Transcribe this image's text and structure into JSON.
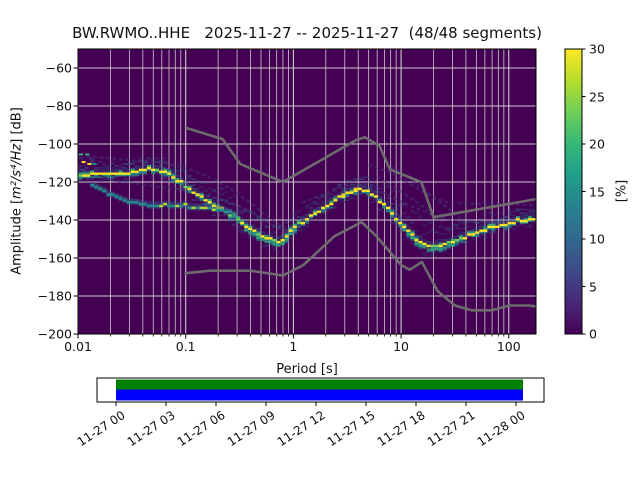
{
  "title": "BW.RWMO..HHE   2025-11-27 -- 2025-11-27  (48/48 segments)",
  "axes": {
    "ylabel": {
      "prefix": "Amplitude [",
      "math": "m²/s⁴/Hz",
      "suffix": "] [dB]"
    },
    "xlabel": "Period [s]",
    "x_tick_values": [
      0.01,
      0.1,
      1,
      10,
      100
    ],
    "x_tick_labels": [
      "0.01",
      "0.1",
      "1",
      "10",
      "100"
    ],
    "y_tick_values": [
      -60,
      -80,
      -100,
      -120,
      -140,
      -160,
      -180,
      -200
    ],
    "y_tick_labels": [
      "−60",
      "−80",
      "−100",
      "−120",
      "−140",
      "−160",
      "−180",
      "−200"
    ]
  },
  "colorbar": {
    "label": "[%]",
    "tick_values": [
      0,
      5,
      10,
      15,
      20,
      25,
      30
    ],
    "tick_labels": [
      "0",
      "5",
      "10",
      "15",
      "20",
      "25",
      "30"
    ],
    "min": 0,
    "max": 30
  },
  "timeline": {
    "tick_labels": [
      "11-27 00",
      "11-27 03",
      "11-27 06",
      "11-27 09",
      "11-27 12",
      "11-27 15",
      "11-27 18",
      "11-27 21",
      "11-28 00"
    ],
    "bar_top_color": "#008000",
    "bar_bottom_color": "#0000ff"
  },
  "colors": {
    "histogram_bg": "#440154",
    "grid": "#cccccc",
    "noise_model_gray": "#707070",
    "mode_yellow": "#f8e621",
    "teal": "#21918c",
    "green": "#35b779",
    "light_green": "#6ece58",
    "yellow_green": "#b5de2b",
    "blue": "#31688e",
    "indigo": "#3b528b",
    "violet": "#472d7b",
    "frame": "#000000",
    "viridis_stops": [
      "#440154",
      "#482878",
      "#3e4a89",
      "#31688e",
      "#26828e",
      "#1f9e89",
      "#35b779",
      "#6ece58",
      "#b5de2b",
      "#fde725"
    ]
  },
  "chart_data": {
    "type": "heatmap",
    "title": "BW.RWMO..HHE   2025-11-27 -- 2025-11-27  (48/48 segments)",
    "station": "BW.RWMO..HHE",
    "date_range": "2025-11-27 -- 2025-11-27",
    "segments_used": "48/48",
    "xlabel": "Period [s]",
    "ylabel": "Amplitude [m²/s⁴/Hz] [dB]",
    "colorbar_label": "[%]",
    "x_scale": "log",
    "xlim": [
      0.01,
      179
    ],
    "ylim": [
      -200,
      -50
    ],
    "clim": [
      0,
      30
    ],
    "grid": true,
    "colormap": "viridis",
    "mode_curve": [
      [
        0.01,
        -116
      ],
      [
        0.013,
        -115.5
      ],
      [
        0.017,
        -115
      ],
      [
        0.022,
        -115.5
      ],
      [
        0.03,
        -114.5
      ],
      [
        0.04,
        -113
      ],
      [
        0.05,
        -112.5
      ],
      [
        0.062,
        -113.5
      ],
      [
        0.075,
        -116
      ],
      [
        0.09,
        -119.5
      ],
      [
        0.11,
        -123.5
      ],
      [
        0.14,
        -127.5
      ],
      [
        0.18,
        -131.5
      ],
      [
        0.22,
        -134
      ],
      [
        0.27,
        -137
      ],
      [
        0.33,
        -140.5
      ],
      [
        0.4,
        -144
      ],
      [
        0.5,
        -147.5
      ],
      [
        0.6,
        -149.5
      ],
      [
        0.72,
        -150.5
      ],
      [
        0.85,
        -148.5
      ],
      [
        1.0,
        -144
      ],
      [
        1.2,
        -140.5
      ],
      [
        1.5,
        -137
      ],
      [
        2.0,
        -132.5
      ],
      [
        2.5,
        -128.5
      ],
      [
        3.0,
        -126
      ],
      [
        3.6,
        -124
      ],
      [
        4.3,
        -123
      ],
      [
        5.0,
        -124.5
      ],
      [
        6.0,
        -128
      ],
      [
        7.0,
        -131.5
      ],
      [
        8.5,
        -136.5
      ],
      [
        10,
        -141.5
      ],
      [
        12,
        -146
      ],
      [
        14,
        -149.5
      ],
      [
        17,
        -152.5
      ],
      [
        20,
        -153.5
      ],
      [
        24,
        -153
      ],
      [
        28,
        -151.5
      ],
      [
        34,
        -149.5
      ],
      [
        42,
        -147.5
      ],
      [
        52,
        -145.5
      ],
      [
        65,
        -144
      ],
      [
        80,
        -142.5
      ],
      [
        100,
        -141
      ],
      [
        130,
        -139.5
      ],
      [
        179,
        -138.5
      ]
    ],
    "secondary_branch": [
      [
        0.0135,
        -121
      ],
      [
        0.017,
        -124
      ],
      [
        0.022,
        -127
      ],
      [
        0.028,
        -129.5
      ],
      [
        0.04,
        -131
      ],
      [
        0.055,
        -131.5
      ],
      [
        0.075,
        -131.5
      ],
      [
        0.1,
        -132
      ],
      [
        0.13,
        -132.5
      ],
      [
        0.17,
        -133.5
      ],
      [
        0.22,
        -134.5
      ],
      [
        0.29,
        -136.5
      ]
    ],
    "left_edge_cluster": [
      [
        0.0102,
        -104.5,
        "green"
      ],
      [
        0.0117,
        -104.8,
        "green"
      ],
      [
        0.0108,
        -109.3,
        "yellow"
      ],
      [
        0.0122,
        -109.8,
        "yellow"
      ],
      [
        0.0136,
        -110.3,
        "teal"
      ],
      [
        0.0102,
        -106.9,
        "blue"
      ],
      [
        0.0126,
        -106.5,
        "blue"
      ],
      [
        0.0114,
        -111.6,
        "blue"
      ],
      [
        0.0104,
        -113,
        "blue"
      ],
      [
        0.0131,
        -108,
        "blue"
      ]
    ],
    "faint_streaks": [
      [
        [
          0.012,
          -106.5
        ],
        [
          0.03,
          -108.5
        ],
        [
          0.06,
          -110
        ],
        [
          0.1,
          -112.5
        ],
        [
          0.16,
          -117
        ],
        [
          0.25,
          -123
        ],
        [
          0.4,
          -131
        ],
        [
          0.6,
          -139
        ],
        [
          0.85,
          -145
        ]
      ],
      [
        [
          0.02,
          -119
        ],
        [
          0.04,
          -121.5
        ],
        [
          0.08,
          -123.5
        ],
        [
          0.15,
          -126.5
        ],
        [
          0.3,
          -132
        ],
        [
          0.5,
          -139
        ],
        [
          0.8,
          -145.5
        ]
      ],
      [
        [
          1.2,
          -131
        ],
        [
          2,
          -126
        ],
        [
          3,
          -122
        ],
        [
          4.5,
          -121
        ],
        [
          6,
          -124
        ],
        [
          9,
          -129
        ],
        [
          14,
          -134
        ],
        [
          22,
          -138.5
        ],
        [
          35,
          -140.5
        ],
        [
          60,
          -141
        ],
        [
          100,
          -141
        ],
        [
          179,
          -141
        ]
      ],
      [
        [
          5,
          -111
        ],
        [
          8,
          -115
        ],
        [
          12,
          -121
        ],
        [
          18,
          -127
        ],
        [
          28,
          -131
        ],
        [
          45,
          -131.5
        ],
        [
          80,
          -131.5
        ],
        [
          130,
          -132
        ],
        [
          179,
          -132
        ]
      ],
      [
        [
          6,
          -117
        ],
        [
          10,
          -125
        ],
        [
          16,
          -133
        ],
        [
          24,
          -141
        ]
      ],
      [
        [
          8,
          -112
        ],
        [
          12,
          -118
        ],
        [
          18,
          -126
        ],
        [
          26,
          -133
        ],
        [
          36,
          -139
        ]
      ]
    ],
    "noise_models": {
      "nhnm": [
        [
          0.1,
          -91.5
        ],
        [
          0.22,
          -97.4
        ],
        [
          0.32,
          -110.5
        ],
        [
          0.8,
          -120
        ],
        [
          3.8,
          -98
        ],
        [
          4.6,
          -96.5
        ],
        [
          6.3,
          -101
        ],
        [
          7.9,
          -113.5
        ],
        [
          15.4,
          -120
        ],
        [
          20,
          -138.5
        ],
        [
          179,
          -129
        ]
      ],
      "nlnm": [
        [
          0.1,
          -168
        ],
        [
          0.17,
          -166.7
        ],
        [
          0.4,
          -166.7
        ],
        [
          0.8,
          -169.2
        ],
        [
          1.24,
          -163.7
        ],
        [
          2.4,
          -148.6
        ],
        [
          4.3,
          -141.1
        ],
        [
          6.0,
          -149
        ],
        [
          10,
          -163.7
        ],
        [
          12,
          -166.2
        ],
        [
          15.6,
          -162.1
        ],
        [
          21.9,
          -177.5
        ],
        [
          31.6,
          -185
        ],
        [
          45,
          -187.5
        ],
        [
          70,
          -187.5
        ],
        [
          101,
          -185
        ],
        [
          154,
          -185
        ],
        [
          179,
          -185.5
        ]
      ]
    }
  }
}
